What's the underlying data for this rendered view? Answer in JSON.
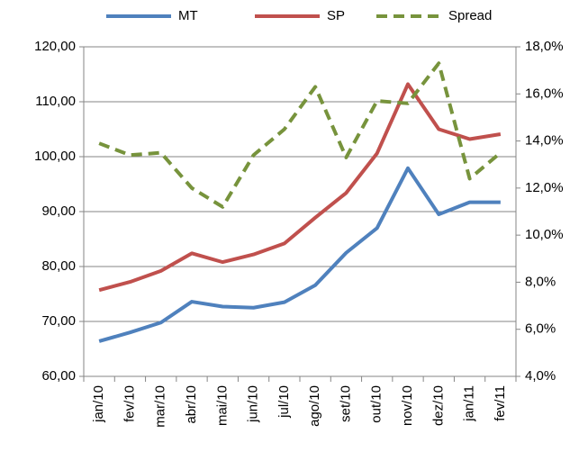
{
  "chart_data": {
    "type": "line",
    "categories": [
      "jan/10",
      "fev/10",
      "mar/10",
      "abr/10",
      "mai/10",
      "jun/10",
      "jul/10",
      "ago/10",
      "set/10",
      "out/10",
      "nov/10",
      "dez/10",
      "jan/11",
      "fev/11"
    ],
    "series": [
      {
        "name": "MT",
        "color": "#4f81bd",
        "values": [
          66.4,
          68.0,
          69.8,
          73.6,
          72.7,
          72.5,
          73.5,
          76.6,
          82.5,
          87.0,
          97.9,
          89.5,
          91.7,
          91.7
        ]
      },
      {
        "name": "SP",
        "color": "#c0504d",
        "values": [
          75.7,
          77.2,
          79.2,
          82.4,
          80.8,
          82.2,
          84.2,
          88.9,
          93.4,
          100.6,
          113.2,
          105.0,
          103.2,
          104.1
        ]
      },
      {
        "name": "Spread",
        "color": "#77933c",
        "dashed": true,
        "axis": "y2",
        "values": [
          13.9,
          13.4,
          13.5,
          12.0,
          11.2,
          13.4,
          14.5,
          16.3,
          13.3,
          15.7,
          15.6,
          17.3,
          12.4,
          13.5
        ]
      }
    ],
    "ylim": [
      60,
      120
    ],
    "yticks": [
      {
        "value": 60,
        "label": "60,00"
      },
      {
        "value": 70,
        "label": "70,00"
      },
      {
        "value": 80,
        "label": "80,00"
      },
      {
        "value": 90,
        "label": "90,00"
      },
      {
        "value": 100,
        "label": "100,00"
      },
      {
        "value": 110,
        "label": "110,00"
      },
      {
        "value": 120,
        "label": "120,00"
      }
    ],
    "y2lim": [
      4,
      18
    ],
    "y2ticks": [
      {
        "value": 4,
        "label": "4,0%"
      },
      {
        "value": 6,
        "label": "6,0%"
      },
      {
        "value": 8,
        "label": "8,0%"
      },
      {
        "value": 10,
        "label": "10,0%"
      },
      {
        "value": 12,
        "label": "12,0%"
      },
      {
        "value": 14,
        "label": "14,0%"
      },
      {
        "value": 16,
        "label": "16,0%"
      },
      {
        "value": 18,
        "label": "18,0%"
      }
    ],
    "grid": true,
    "legend": "top"
  }
}
